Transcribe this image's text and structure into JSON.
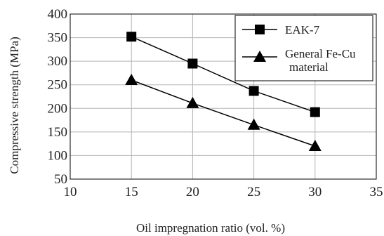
{
  "chart_data": {
    "type": "line",
    "xlabel": "Oil impregnation ratio (vol. %)",
    "ylabel": "Compressive strength (MPa)",
    "xlim": [
      10,
      35
    ],
    "ylim": [
      50,
      400
    ],
    "xticks": [
      10,
      15,
      20,
      25,
      30,
      35
    ],
    "yticks": [
      50,
      100,
      150,
      200,
      250,
      300,
      350,
      400
    ],
    "grid": true,
    "legend_position": "top-right",
    "series": [
      {
        "name": "EAK-7",
        "marker": "square",
        "color": "#000000",
        "x": [
          15,
          20,
          25,
          30
        ],
        "y": [
          352,
          295,
          237,
          192
        ]
      },
      {
        "name": "General Fe-Cu material",
        "name_lines": [
          "General Fe-Cu",
          "material"
        ],
        "marker": "triangle",
        "color": "#000000",
        "x": [
          15,
          20,
          25,
          30
        ],
        "y": [
          260,
          211,
          165,
          120
        ]
      }
    ]
  }
}
